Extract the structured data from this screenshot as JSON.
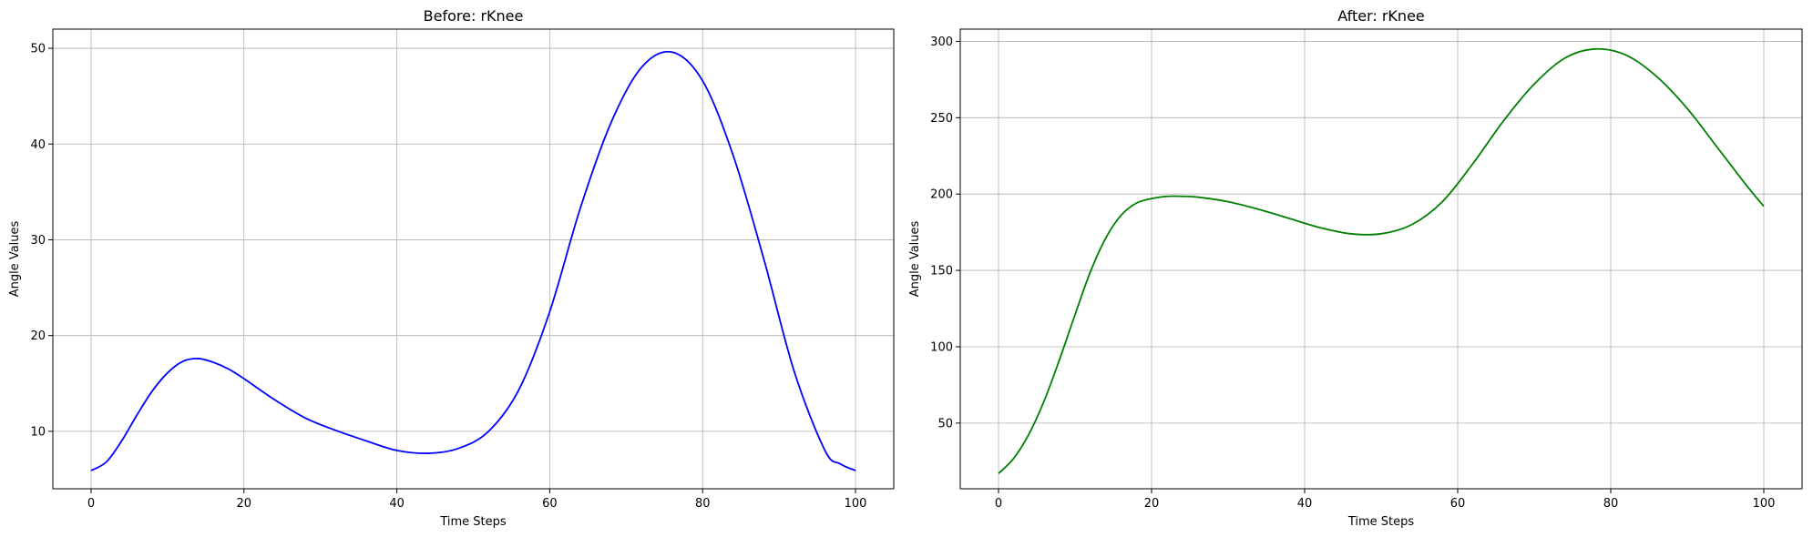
{
  "chart_data": [
    {
      "type": "line",
      "title": "Before: rKnee",
      "xlabel": "Time Steps",
      "ylabel": "Angle Values",
      "xlim": [
        -5,
        105
      ],
      "ylim": [
        4,
        52
      ],
      "xticks": [
        0,
        20,
        40,
        60,
        80,
        100
      ],
      "yticks": [
        10,
        20,
        30,
        40,
        50
      ],
      "grid": true,
      "series": [
        {
          "color": "#0000ff",
          "x": [
            0,
            2,
            4,
            6,
            8,
            10,
            12,
            14,
            16,
            18,
            20,
            24,
            28,
            32,
            36,
            40,
            44,
            48,
            52,
            56,
            60,
            64,
            68,
            72,
            76,
            80,
            84,
            88,
            92,
            96,
            98,
            100
          ],
          "y": [
            5.9,
            6.8,
            9.0,
            11.7,
            14.2,
            16.1,
            17.3,
            17.6,
            17.2,
            16.5,
            15.5,
            13.3,
            11.4,
            10.1,
            9.0,
            8.0,
            7.7,
            8.2,
            10.0,
            14.4,
            22.5,
            33.3,
            42.2,
            48.0,
            49.6,
            46.6,
            38.8,
            28.0,
            16.2,
            8.0,
            6.6,
            5.9
          ]
        }
      ]
    },
    {
      "type": "line",
      "title": "After: rKnee",
      "xlabel": "Time Steps",
      "ylabel": "Angle Values",
      "xlim": [
        -5,
        105
      ],
      "ylim": [
        7,
        308
      ],
      "xticks": [
        0,
        20,
        40,
        60,
        80,
        100
      ],
      "yticks": [
        50,
        100,
        150,
        200,
        250,
        300
      ],
      "grid": true,
      "series": [
        {
          "color": "#008000",
          "x": [
            0,
            2,
            4,
            6,
            8,
            10,
            12,
            14,
            16,
            18,
            20,
            22,
            24,
            26,
            30,
            34,
            38,
            42,
            46,
            50,
            54,
            58,
            62,
            66,
            70,
            74,
            78,
            82,
            86,
            90,
            94,
            98,
            100
          ],
          "y": [
            17,
            27,
            43,
            65,
            92,
            121,
            149,
            171,
            186,
            194,
            197,
            198.5,
            198.5,
            198,
            195,
            190,
            184,
            178,
            174,
            174,
            180,
            195,
            220,
            248,
            272,
            289,
            295,
            291,
            277,
            256,
            230,
            204,
            192
          ]
        }
      ]
    }
  ]
}
